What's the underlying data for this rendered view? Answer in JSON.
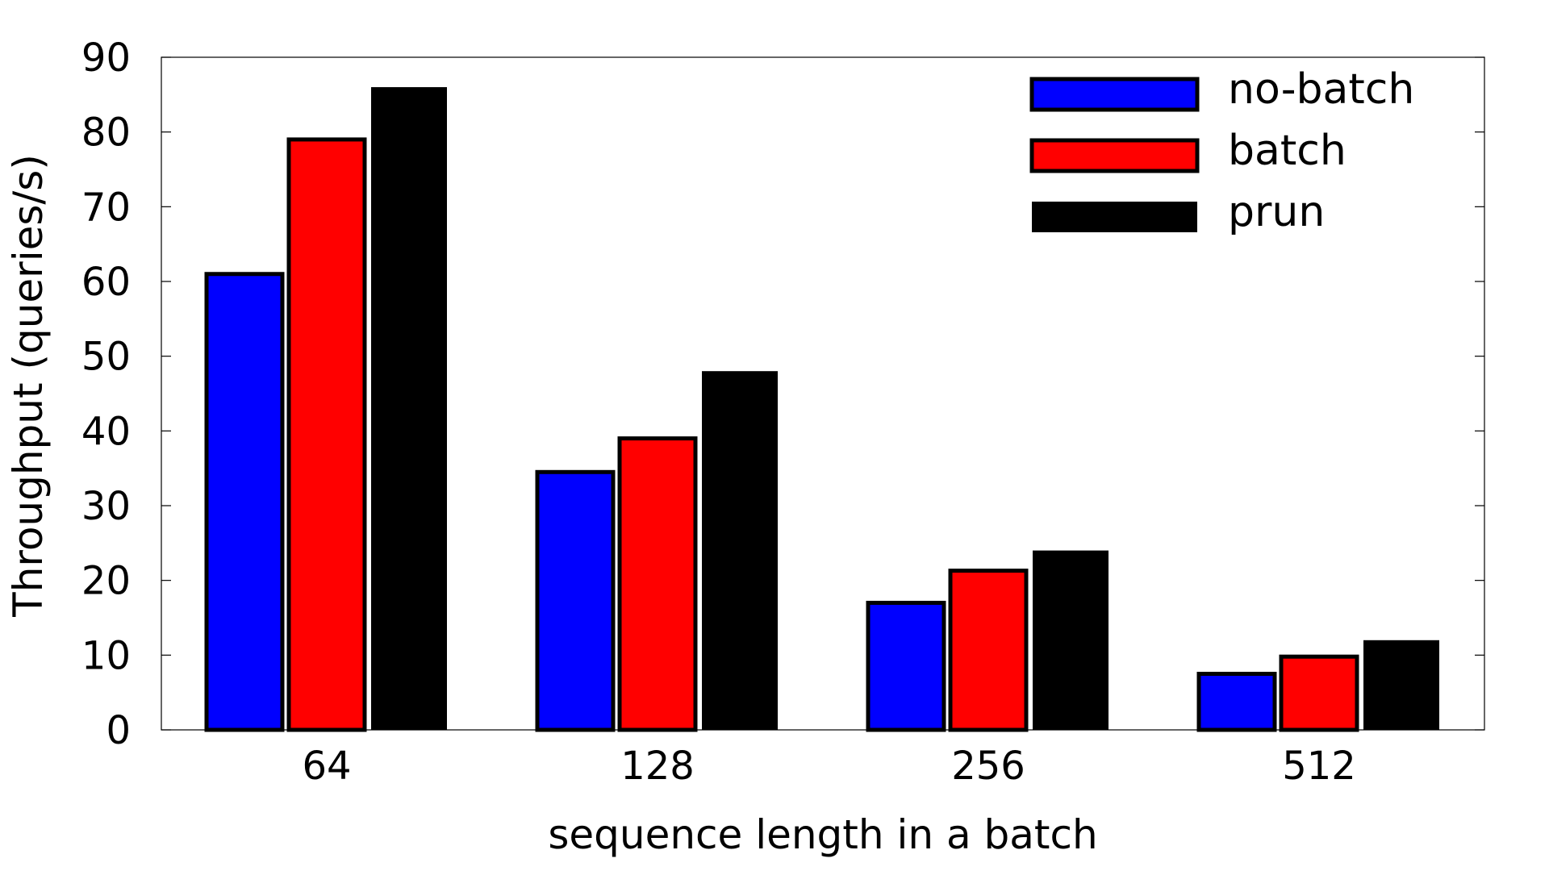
{
  "chart_data": {
    "type": "bar",
    "title": "",
    "xlabel": "sequence length in a batch",
    "ylabel": "Throughput (queries/s)",
    "categories": [
      "64",
      "128",
      "256",
      "512"
    ],
    "ylim": [
      0,
      90
    ],
    "yticks": [
      0,
      10,
      20,
      30,
      40,
      50,
      60,
      70,
      80,
      90
    ],
    "series": [
      {
        "name": "no-batch",
        "color": "#0000ff",
        "outlined": true,
        "values": [
          61,
          34.5,
          17,
          7.5
        ]
      },
      {
        "name": "batch",
        "color": "#ff0000",
        "outlined": true,
        "values": [
          79,
          39,
          21.3,
          9.8
        ]
      },
      {
        "name": "prun",
        "color": "#000000",
        "outlined": false,
        "values": [
          86,
          48,
          24,
          12
        ]
      }
    ],
    "grid": false,
    "legend_position": "top-right"
  }
}
